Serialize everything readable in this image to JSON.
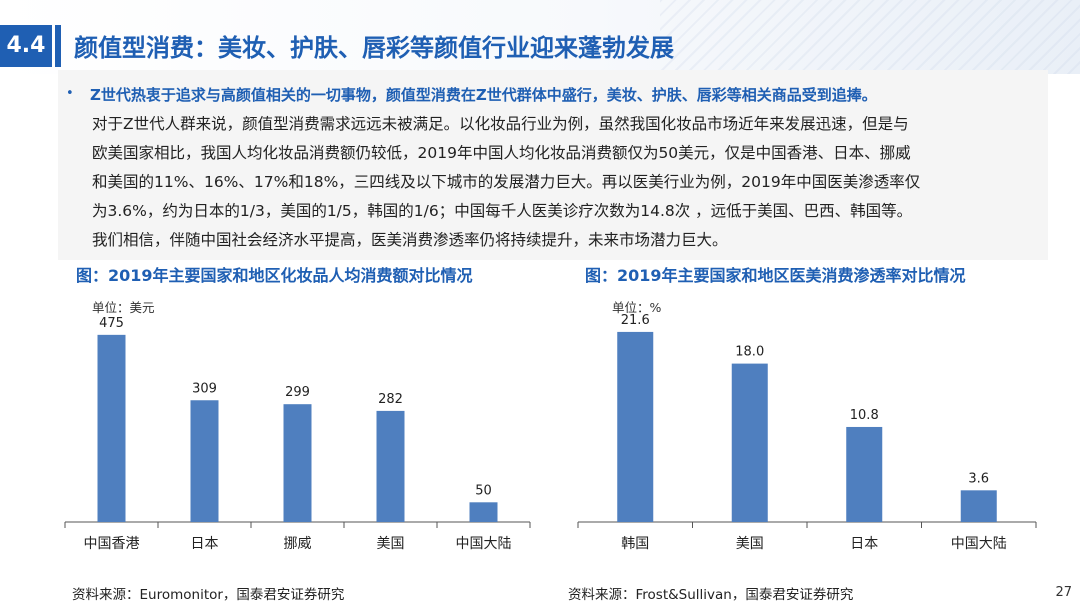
{
  "header": {
    "section_number": "4.4",
    "title": "颜值型消费：美妆、护肤、唇彩等颜值行业迎来蓬勃发展"
  },
  "content": {
    "bullet": "•",
    "lead": "Z世代热衷于追求与高颜值相关的一切事物，颜值型消费在Z世代群体中盛行，美妆、护肤、唇彩等相关商品受到追捧。",
    "lines": [
      "对于Z世代人群来说，颜值型消费需求远远未被满足。以化妆品行业为例，虽然我国化妆品市场近年来发展迅速，但是与",
      "欧美国家相比，我国人均化妆品消费额仍较低，2019年中国人均化妆品消费额仅为50美元，仅是中国香港、日本、挪威",
      "和美国的11%、16%、17%和18%，三四线及以下城市的发展潜力巨大。再以医美行业为例，2019年中国医美渗透率仅",
      "为3.6%，约为日本的1/3，美国的1/5，韩国的1/6；中国每千人医美诊疗次数为14.8次 ，远低于美国、巴西、韩国等。",
      "我们相信，伴随中国社会经济水平提高，医美消费渗透率仍将持续提升，未来市场潜力巨大。"
    ]
  },
  "figures": {
    "left": {
      "title": "图：2019年主要国家和地区化妆品人均消费额对比情况",
      "unit": "单位：美元",
      "source": "资料来源：Euromonitor，国泰君安证券研究"
    },
    "right": {
      "title": "图：2019年主要国家和地区医美消费渗透率对比情况",
      "unit": "单位：%",
      "source": "资料来源：Frost&Sullivan，国泰君安证券研究"
    }
  },
  "chart_data": [
    {
      "type": "bar",
      "title": "图：2019年主要国家和地区化妆品人均消费额对比情况",
      "ylabel": "单位：美元",
      "categories": [
        "中国香港",
        "日本",
        "挪威",
        "美国",
        "中国大陆"
      ],
      "values": [
        475,
        309,
        299,
        282,
        50
      ],
      "labels": [
        "475",
        "309",
        "299",
        "282",
        "50"
      ],
      "ylim": [
        0,
        500
      ],
      "grid": false,
      "color": "#4f7fbf"
    },
    {
      "type": "bar",
      "title": "图：2019年主要国家和地区医美消费渗透率对比情况",
      "ylabel": "单位：%",
      "categories": [
        "韩国",
        "美国",
        "日本",
        "中国大陆"
      ],
      "values": [
        21.6,
        18.0,
        10.8,
        3.6
      ],
      "labels": [
        "21.6",
        "18.0",
        "10.8",
        "3.6"
      ],
      "ylim": [
        0,
        22.5
      ],
      "grid": false,
      "color": "#4f7fbf"
    }
  ],
  "page_number": "27"
}
